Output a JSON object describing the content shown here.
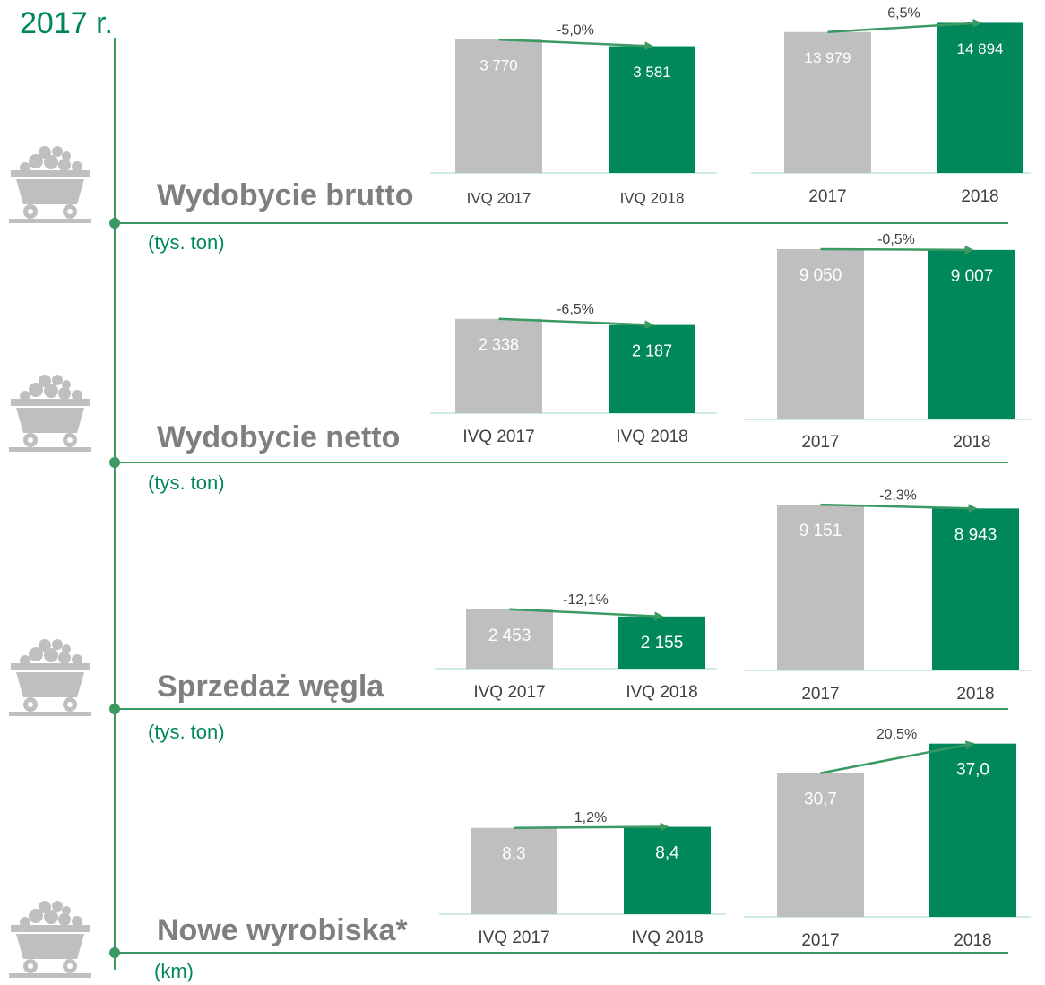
{
  "header": "2017 r.",
  "sections": [
    {
      "title": "Wydobycie brutto",
      "unit": "(tys. ton)"
    },
    {
      "title": "Wydobycie netto",
      "unit": "(tys. ton)"
    },
    {
      "title": "Sprzedaż węgla",
      "unit": "(tys. ton)"
    },
    {
      "title": "Nowe wyrobiska*",
      "unit": "(km)"
    }
  ],
  "chart_data": [
    {
      "type": "bar",
      "categories": [
        "IVQ 2017",
        "IVQ 2018"
      ],
      "values": [
        3770,
        3581
      ],
      "value_labels": [
        "3 770",
        "3 581"
      ],
      "colors": [
        "#bfbfbf",
        "#00875a"
      ],
      "annotation": "-5,0%",
      "ylim": [
        0,
        4000
      ]
    },
    {
      "type": "bar",
      "categories": [
        "2017",
        "2018"
      ],
      "values": [
        13979,
        14894
      ],
      "value_labels": [
        "13 979",
        "14 894"
      ],
      "colors": [
        "#bfbfbf",
        "#00875a"
      ],
      "annotation": "6,5%",
      "ylim": [
        0,
        16000
      ]
    },
    {
      "type": "bar",
      "categories": [
        "IVQ 2017",
        "IVQ 2018"
      ],
      "values": [
        2338,
        2187
      ],
      "value_labels": [
        "2 338",
        "2 187"
      ],
      "colors": [
        "#bfbfbf",
        "#00875a"
      ],
      "annotation": "-6,5%",
      "ylim": [
        0,
        3000
      ]
    },
    {
      "type": "bar",
      "categories": [
        "2017",
        "2018"
      ],
      "values": [
        9050,
        9007
      ],
      "value_labels": [
        "9 050",
        "9 007"
      ],
      "colors": [
        "#bfbfbf",
        "#00875a"
      ],
      "annotation": "-0,5%",
      "ylim": [
        0,
        10000
      ]
    },
    {
      "type": "bar",
      "categories": [
        "IVQ 2017",
        "IVQ 2018"
      ],
      "values": [
        2453,
        2155
      ],
      "value_labels": [
        "2 453",
        "2 155"
      ],
      "colors": [
        "#bfbfbf",
        "#00875a"
      ],
      "annotation": "-12,1%",
      "ylim": [
        0,
        3000
      ]
    },
    {
      "type": "bar",
      "categories": [
        "2017",
        "2018"
      ],
      "values": [
        9151,
        8943
      ],
      "value_labels": [
        "9 151",
        "8 943"
      ],
      "colors": [
        "#bfbfbf",
        "#00875a"
      ],
      "annotation": "-2,3%",
      "ylim": [
        0,
        10000
      ]
    },
    {
      "type": "bar",
      "categories": [
        "IVQ 2017",
        "IVQ 2018"
      ],
      "values": [
        8.3,
        8.4
      ],
      "value_labels": [
        "8,3",
        "8,4"
      ],
      "colors": [
        "#bfbfbf",
        "#00875a"
      ],
      "annotation": "1,2%",
      "ylim": [
        0,
        10
      ]
    },
    {
      "type": "bar",
      "categories": [
        "2017",
        "2018"
      ],
      "values": [
        30.7,
        37.0
      ],
      "value_labels": [
        "30,7",
        "37,0"
      ],
      "colors": [
        "#bfbfbf",
        "#00875a"
      ],
      "annotation": "20,5%",
      "ylim": [
        0,
        40
      ]
    }
  ]
}
